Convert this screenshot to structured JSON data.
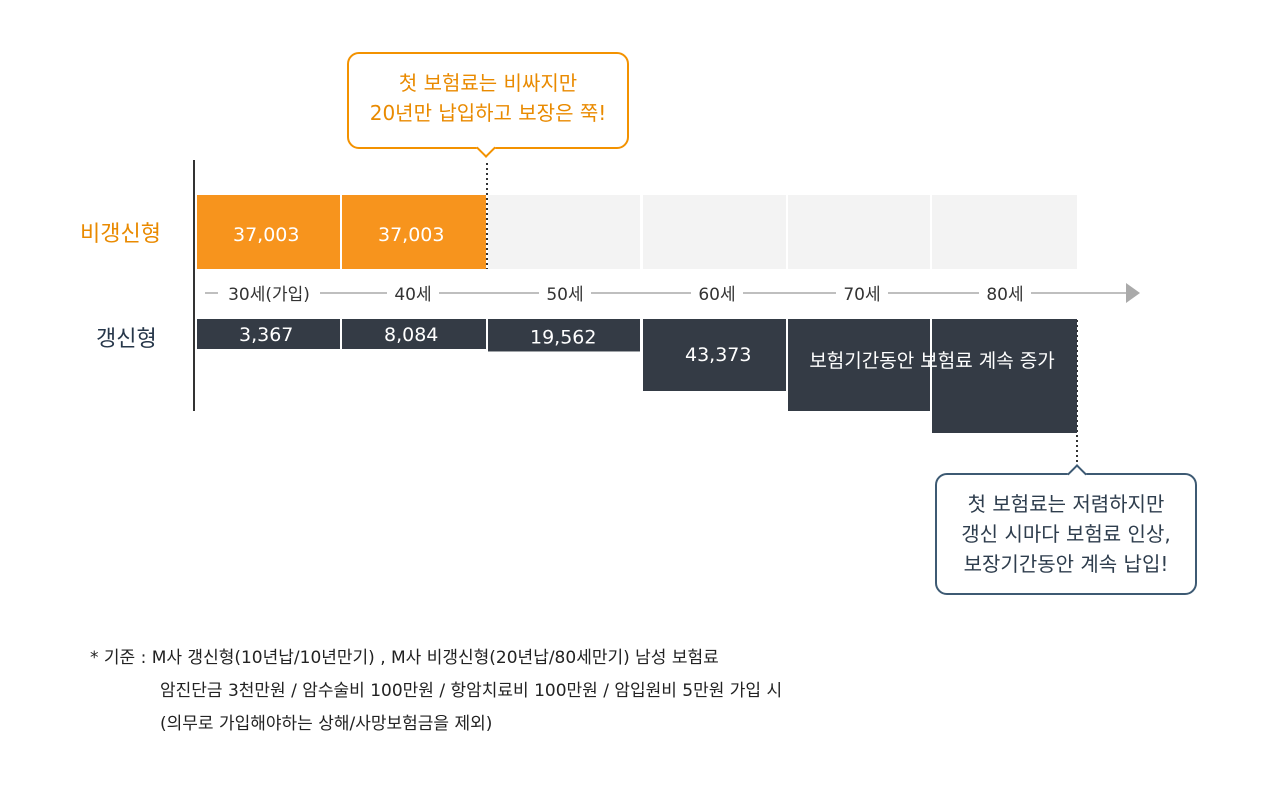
{
  "chart_data": {
    "type": "bar",
    "title": "",
    "xlabel": "",
    "ylabel": "",
    "categories": [
      "30세(가입)",
      "40세",
      "50세",
      "60세",
      "70세",
      "80세"
    ],
    "series": [
      {
        "name": "비갱신형",
        "color": "#f7941d",
        "values": [
          37003,
          37003,
          null,
          null,
          null,
          null
        ],
        "labels": [
          "37,003",
          "37,003",
          "",
          "",
          "",
          ""
        ]
      },
      {
        "name": "갱신형",
        "color": "#343b45",
        "values": [
          3367,
          8084,
          19562,
          43373,
          null,
          null
        ],
        "labels": [
          "3,367",
          "8,084",
          "19,562",
          "43,373",
          "",
          ""
        ]
      }
    ],
    "annotation_bar_text": "보험기간동안 보험료 계속 증가"
  },
  "callouts": {
    "top": [
      "첫 보험료는 비싸지만",
      "20년만 납입하고 보장은 쭉!"
    ],
    "bottom": [
      "첫 보험료는 저렴하지만",
      "갱신 시마다 보험료 인상,",
      "보장기간동안 계속 납입!"
    ]
  },
  "footnote": {
    "line1": "* 기준 : M사 갱신형(10년납/10년만기) , M사 비갱신형(20년납/80세만기) 남성 보험료",
    "line2": "암진단금 3천만원 / 암수술비 100만원 / 항암치료비 100만원 / 암입원비 5만원 가입 시",
    "line3": "(의무로 가입해야하는 상해/사망보험금을 제외)"
  },
  "colors": {
    "orange": "#f7941d",
    "orange_text": "#e98a00",
    "navy": "#343b45",
    "navy_text": "#27374a",
    "placeholder": "#f3f3f3",
    "axis": "#aaaaaa"
  }
}
